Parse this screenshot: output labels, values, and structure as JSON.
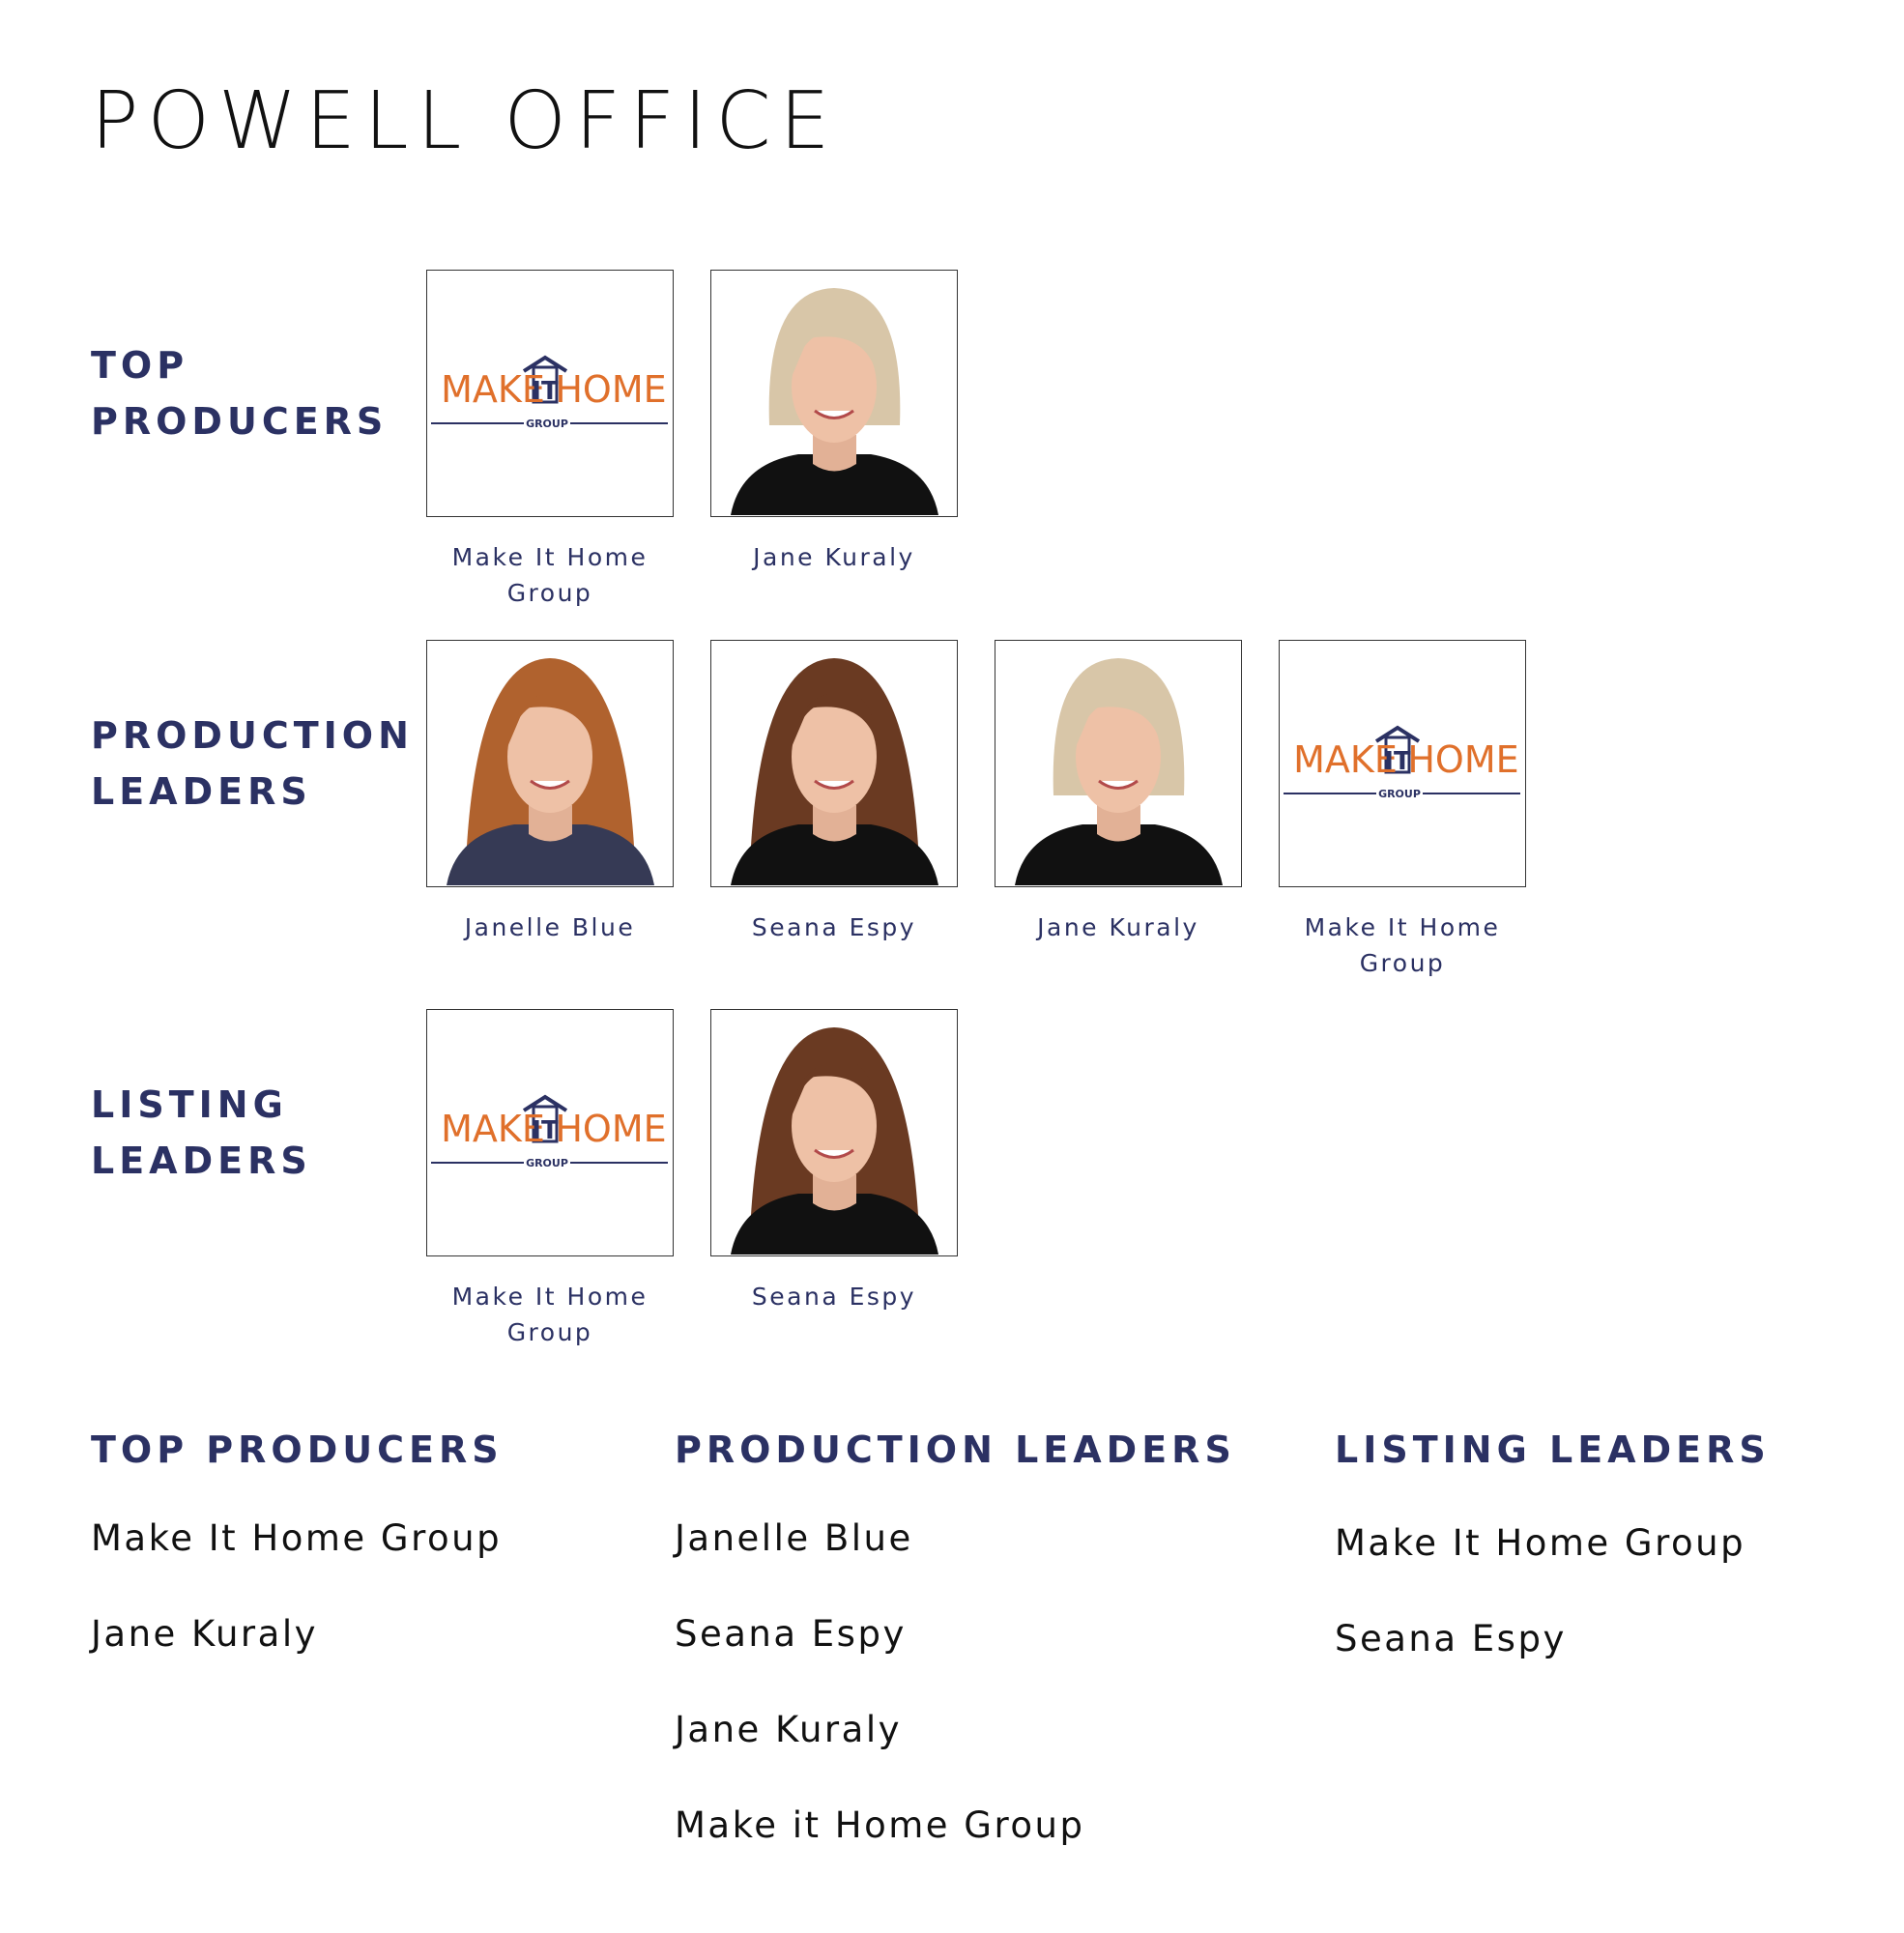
{
  "header": {
    "title": "POWELL OFFICE"
  },
  "logo": {
    "word1": "MAKE",
    "word2": "IT",
    "word3": "HOME",
    "tagline": "GROUP"
  },
  "sections": [
    {
      "heading": [
        "TOP",
        "PRODUCERS"
      ],
      "cards": [
        {
          "kind": "logo",
          "caption": "Make It Home Group"
        },
        {
          "kind": "blonde",
          "caption": "Jane Kuraly"
        }
      ]
    },
    {
      "heading": [
        "PRODUCTION",
        "LEADERS"
      ],
      "cards": [
        {
          "kind": "red",
          "caption": "Janelle Blue"
        },
        {
          "kind": "brunette",
          "caption": "Seana Espy"
        },
        {
          "kind": "blonde",
          "caption": "Jane Kuraly"
        },
        {
          "kind": "logo",
          "caption": "Make It Home Group"
        }
      ]
    },
    {
      "heading": [
        "LISTING",
        "LEADERS"
      ],
      "cards": [
        {
          "kind": "logo",
          "caption": "Make It Home Group"
        },
        {
          "kind": "brunette",
          "caption": "Seana Espy"
        }
      ]
    }
  ],
  "lists": [
    {
      "heading": "TOP PRODUCERS",
      "items": [
        "Make It Home Group",
        "Jane Kuraly"
      ]
    },
    {
      "heading": "PRODUCTION LEADERS",
      "items": [
        "Janelle Blue",
        "Seana Espy",
        "Jane Kuraly",
        "Make it Home Group"
      ]
    },
    {
      "heading": "LISTING LEADERS",
      "items": [
        "Make It Home Group",
        "Seana Espy"
      ]
    }
  ]
}
